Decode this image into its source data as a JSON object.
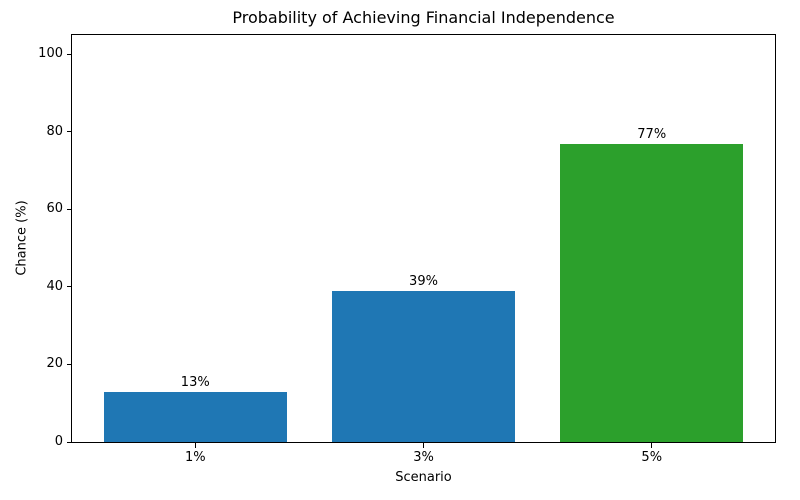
{
  "chart_data": {
    "type": "bar",
    "title": "Probability of Achieving Financial Independence",
    "xlabel": "Scenario",
    "ylabel": "Chance (%)",
    "categories": [
      "1%",
      "3%",
      "5%"
    ],
    "values": [
      13,
      39,
      77
    ],
    "bar_labels": [
      "13%",
      "39%",
      "77%"
    ],
    "bar_colors": [
      "#1f77b4",
      "#1f77b4",
      "#2ca02c"
    ],
    "yticks": [
      0,
      20,
      40,
      60,
      80,
      100
    ],
    "ylim": [
      0,
      105
    ],
    "grid": false,
    "legend": "none",
    "background_color": "#ffffff",
    "axis_color": "#000000"
  }
}
